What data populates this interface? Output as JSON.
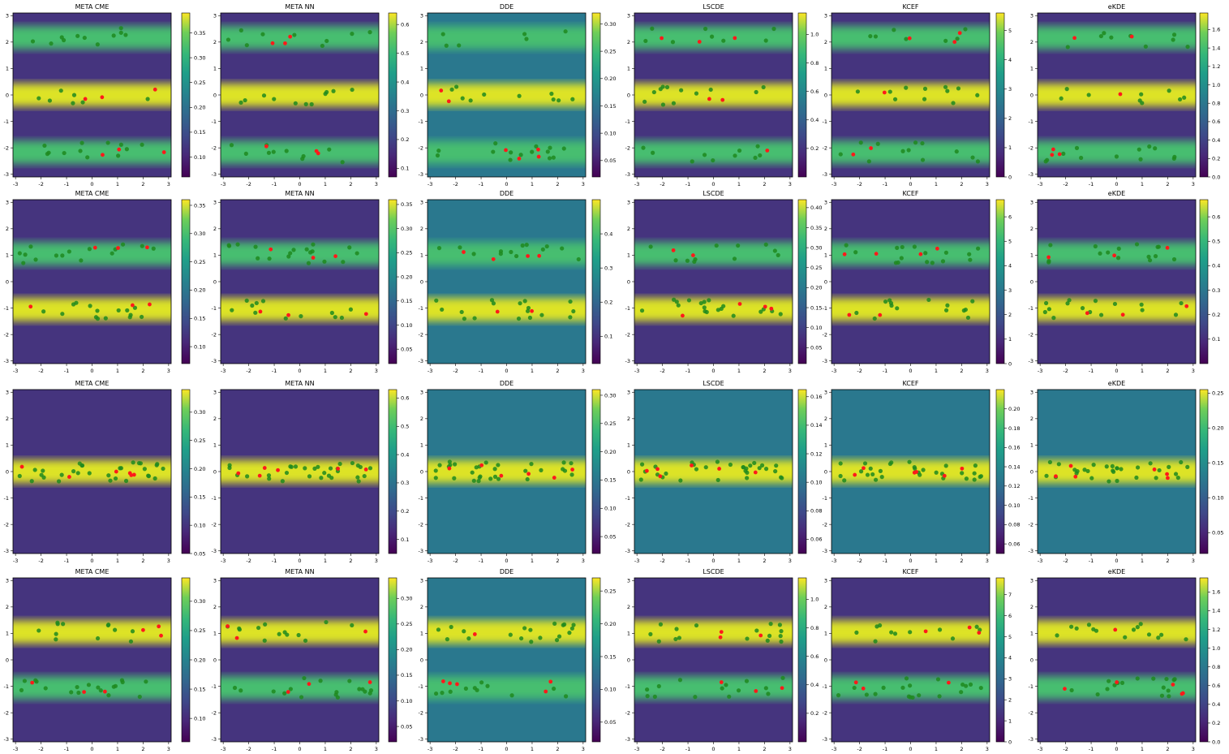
{
  "colormap": "viridis",
  "colors": {
    "train_points": "#1f8a1f",
    "context_points": "#ff1a1a"
  },
  "chart_data": [
    {
      "type": "heatmap",
      "title": "META CME",
      "xticks": [
        -3,
        -2,
        -1,
        0,
        1,
        2,
        3
      ],
      "yticks": [
        -3,
        -2,
        -1,
        0,
        1,
        2,
        3
      ],
      "colorbar_ticks": [
        "0.10",
        "0.15",
        "0.20",
        "0.25",
        "0.30",
        "0.35"
      ],
      "colorbar_range": [
        0.06,
        0.39
      ]
    },
    {
      "type": "heatmap",
      "title": "META NN",
      "xticks": [
        -3,
        -2,
        -1,
        0,
        1,
        2,
        3
      ],
      "yticks": [
        -3,
        -2,
        -1,
        0,
        1,
        2,
        3
      ],
      "colorbar_ticks": [
        "0.1",
        "0.2",
        "0.3",
        "0.4",
        "0.5",
        "0.6"
      ],
      "colorbar_range": [
        0.07,
        0.64
      ]
    },
    {
      "type": "heatmap",
      "title": "DDE",
      "xticks": [
        -3,
        -2,
        -1,
        0,
        1,
        2,
        3
      ],
      "yticks": [
        -3,
        -2,
        -1,
        0,
        1,
        2,
        3
      ],
      "colorbar_ticks": [
        "0.05",
        "0.10",
        "0.15",
        "0.20",
        "0.25",
        "0.30"
      ],
      "colorbar_range": [
        0.02,
        0.32
      ]
    },
    {
      "type": "heatmap",
      "title": "LSCDE",
      "xticks": [
        -3,
        -2,
        -1,
        0,
        1,
        2,
        3
      ],
      "yticks": [
        -3,
        -2,
        -1,
        0,
        1,
        2,
        3
      ],
      "colorbar_ticks": [
        "0.2",
        "0.4",
        "0.6",
        "0.8",
        "1.0"
      ],
      "colorbar_range": [
        0.0,
        1.15
      ]
    },
    {
      "type": "heatmap",
      "title": "KCEF",
      "xticks": [
        -3,
        -2,
        -1,
        0,
        1,
        2,
        3
      ],
      "yticks": [
        -3,
        -2,
        -1,
        0,
        1,
        2,
        3
      ],
      "colorbar_ticks": [
        "0",
        "1",
        "2",
        "3",
        "4",
        "5"
      ],
      "colorbar_range": [
        0,
        5.6
      ]
    },
    {
      "type": "heatmap",
      "title": "eKDE",
      "xticks": [
        -3,
        -2,
        -1,
        0,
        1,
        2,
        3
      ],
      "yticks": [
        -3,
        -2,
        -1,
        0,
        1,
        2,
        3
      ],
      "colorbar_ticks": [
        "0.0",
        "0.2",
        "0.4",
        "0.6",
        "0.8",
        "1.0",
        "1.2",
        "1.4",
        "1.6"
      ],
      "colorbar_range": [
        0,
        1.78
      ]
    },
    {
      "type": "heatmap",
      "title": "META CME",
      "xticks": [
        -3,
        -2,
        -1,
        0,
        1,
        2,
        3
      ],
      "yticks": [
        -3,
        -2,
        -1,
        0,
        1,
        2,
        3
      ],
      "colorbar_ticks": [
        "0.10",
        "0.15",
        "0.20",
        "0.25",
        "0.30",
        "0.35"
      ],
      "colorbar_range": [
        0.07,
        0.36
      ]
    },
    {
      "type": "heatmap",
      "title": "META NN",
      "xticks": [
        -3,
        -2,
        -1,
        0,
        1,
        2,
        3
      ],
      "yticks": [
        -3,
        -2,
        -1,
        0,
        1,
        2,
        3
      ],
      "colorbar_ticks": [
        "0.05",
        "0.10",
        "0.15",
        "0.20",
        "0.25",
        "0.30",
        "0.35"
      ],
      "colorbar_range": [
        0.02,
        0.36
      ]
    },
    {
      "type": "heatmap",
      "title": "DDE",
      "xticks": [
        -3,
        -2,
        -1,
        0,
        1,
        2,
        3
      ],
      "yticks": [
        -3,
        -2,
        -1,
        0,
        1,
        2,
        3
      ],
      "colorbar_ticks": [
        "0.1",
        "0.2",
        "0.3",
        "0.4"
      ],
      "colorbar_range": [
        0.02,
        0.5
      ]
    },
    {
      "type": "heatmap",
      "title": "LSCDE",
      "xticks": [
        -3,
        -2,
        -1,
        0,
        1,
        2,
        3
      ],
      "yticks": [
        -3,
        -2,
        -1,
        0,
        1,
        2,
        3
      ],
      "colorbar_ticks": [
        "0.05",
        "0.10",
        "0.15",
        "0.20",
        "0.25",
        "0.30",
        "0.35",
        "0.40"
      ],
      "colorbar_range": [
        0.01,
        0.42
      ]
    },
    {
      "type": "heatmap",
      "title": "KCEF",
      "xticks": [
        -3,
        -2,
        -1,
        0,
        1,
        2,
        3
      ],
      "yticks": [
        -3,
        -2,
        -1,
        0,
        1,
        2,
        3
      ],
      "colorbar_ticks": [
        "0",
        "1",
        "2",
        "3",
        "4",
        "5",
        "6"
      ],
      "colorbar_range": [
        0,
        6.7
      ]
    },
    {
      "type": "heatmap",
      "title": "eKDE",
      "xticks": [
        -3,
        -2,
        -1,
        0,
        1,
        2,
        3
      ],
      "yticks": [
        -3,
        -2,
        -1,
        0,
        1,
        2,
        3
      ],
      "colorbar_ticks": [
        "0.1",
        "0.2",
        "0.3",
        "0.4",
        "0.5",
        "0.6"
      ],
      "colorbar_range": [
        0.0,
        0.67
      ]
    },
    {
      "type": "heatmap",
      "title": "META CME",
      "xticks": [
        -3,
        -2,
        -1,
        0,
        1,
        2,
        3
      ],
      "yticks": [
        -3,
        -2,
        -1,
        0,
        1,
        2,
        3
      ],
      "colorbar_ticks": [
        "0.05",
        "0.10",
        "0.15",
        "0.20",
        "0.25",
        "0.30"
      ],
      "colorbar_range": [
        0.05,
        0.34
      ]
    },
    {
      "type": "heatmap",
      "title": "META NN",
      "xticks": [
        -3,
        -2,
        -1,
        0,
        1,
        2,
        3
      ],
      "yticks": [
        -3,
        -2,
        -1,
        0,
        1,
        2,
        3
      ],
      "colorbar_ticks": [
        "0.1",
        "0.2",
        "0.3",
        "0.4",
        "0.5",
        "0.6"
      ],
      "colorbar_range": [
        0.05,
        0.63
      ]
    },
    {
      "type": "heatmap",
      "title": "DDE",
      "xticks": [
        -3,
        -2,
        -1,
        0,
        1,
        2,
        3
      ],
      "yticks": [
        -3,
        -2,
        -1,
        0,
        1,
        2,
        3
      ],
      "colorbar_ticks": [
        "0.05",
        "0.10",
        "0.15",
        "0.20",
        "0.25",
        "0.30"
      ],
      "colorbar_range": [
        0.02,
        0.31
      ]
    },
    {
      "type": "heatmap",
      "title": "LSCDE",
      "xticks": [
        -3,
        -2,
        -1,
        0,
        1,
        2,
        3
      ],
      "yticks": [
        -3,
        -2,
        -1,
        0,
        1,
        2,
        3
      ],
      "colorbar_ticks": [
        "0.06",
        "0.08",
        "0.10",
        "0.12",
        "0.14",
        "0.16"
      ],
      "colorbar_range": [
        0.05,
        0.165
      ]
    },
    {
      "type": "heatmap",
      "title": "KCEF",
      "xticks": [
        -3,
        -2,
        -1,
        0,
        1,
        2,
        3
      ],
      "yticks": [
        -3,
        -2,
        -1,
        0,
        1,
        2,
        3
      ],
      "colorbar_ticks": [
        "0.06",
        "0.08",
        "0.10",
        "0.12",
        "0.14",
        "0.16",
        "0.18",
        "0.20"
      ],
      "colorbar_range": [
        0.05,
        0.22
      ]
    },
    {
      "type": "heatmap",
      "title": "eKDE",
      "xticks": [
        -3,
        -2,
        -1,
        0,
        1,
        2,
        3
      ],
      "yticks": [
        -3,
        -2,
        -1,
        0,
        1,
        2,
        3
      ],
      "colorbar_ticks": [
        "0.05",
        "0.10",
        "0.15",
        "0.20",
        "0.25"
      ],
      "colorbar_range": [
        0.02,
        0.255
      ]
    },
    {
      "type": "heatmap",
      "title": "META CME",
      "xticks": [
        -3,
        -2,
        -1,
        0,
        1,
        2,
        3
      ],
      "yticks": [
        -3,
        -2,
        -1,
        0,
        1,
        2,
        3
      ],
      "colorbar_ticks": [
        "0.10",
        "0.15",
        "0.20",
        "0.25",
        "0.30"
      ],
      "colorbar_range": [
        0.06,
        0.34
      ]
    },
    {
      "type": "heatmap",
      "title": "META NN",
      "xticks": [
        -3,
        -2,
        -1,
        0,
        1,
        2,
        3
      ],
      "yticks": [
        -3,
        -2,
        -1,
        0,
        1,
        2,
        3
      ],
      "colorbar_ticks": [
        "0.05",
        "0.10",
        "0.15",
        "0.20",
        "0.25",
        "0.30"
      ],
      "colorbar_range": [
        0.02,
        0.34
      ]
    },
    {
      "type": "heatmap",
      "title": "DDE",
      "xticks": [
        -3,
        -2,
        -1,
        0,
        1,
        2,
        3
      ],
      "yticks": [
        -3,
        -2,
        -1,
        0,
        1,
        2,
        3
      ],
      "colorbar_ticks": [
        "0.05",
        "0.10",
        "0.15",
        "0.20",
        "0.25"
      ],
      "colorbar_range": [
        0.02,
        0.27
      ]
    },
    {
      "type": "heatmap",
      "title": "LSCDE",
      "xticks": [
        -3,
        -2,
        -1,
        0,
        1,
        2,
        3
      ],
      "yticks": [
        -3,
        -2,
        -1,
        0,
        1,
        2,
        3
      ],
      "colorbar_ticks": [
        "0.2",
        "0.4",
        "0.6",
        "0.8",
        "1.0"
      ],
      "colorbar_range": [
        0,
        1.15
      ]
    },
    {
      "type": "heatmap",
      "title": "KCEF",
      "xticks": [
        -3,
        -2,
        -1,
        0,
        1,
        2,
        3
      ],
      "yticks": [
        -3,
        -2,
        -1,
        0,
        1,
        2,
        3
      ],
      "colorbar_ticks": [
        "0",
        "1",
        "2",
        "3",
        "4",
        "5",
        "6",
        "7"
      ],
      "colorbar_range": [
        0,
        7.8
      ]
    },
    {
      "type": "heatmap",
      "title": "eKDE",
      "xticks": [
        -3,
        -2,
        -1,
        0,
        1,
        2,
        3
      ],
      "yticks": [
        -3,
        -2,
        -1,
        0,
        1,
        2,
        3
      ],
      "colorbar_ticks": [
        "0.0",
        "0.2",
        "0.4",
        "0.6",
        "0.8",
        "1.0",
        "1.2",
        "1.4",
        "1.6"
      ],
      "colorbar_range": [
        0,
        1.75
      ]
    }
  ]
}
